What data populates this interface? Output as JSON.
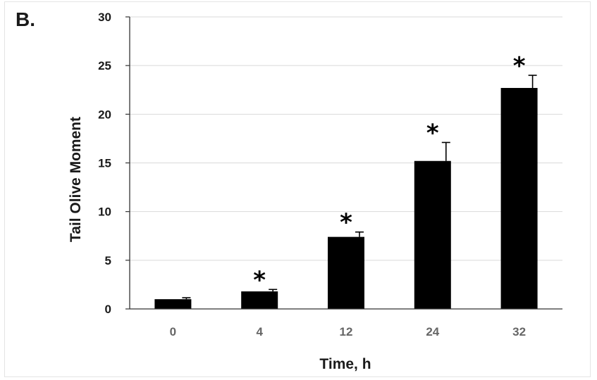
{
  "panel_label": "B.",
  "chart_data": {
    "type": "bar",
    "categories": [
      "0",
      "4",
      "12",
      "24",
      "32"
    ],
    "values": [
      1.0,
      1.8,
      7.4,
      15.2,
      22.7
    ],
    "error": [
      0.15,
      0.2,
      0.5,
      1.9,
      1.3
    ],
    "significance": [
      "",
      "*",
      "*",
      "*",
      "*"
    ],
    "xlabel": "Time, h",
    "ylabel": "Tail Olive Moment",
    "ylim": [
      0,
      30
    ],
    "yticks": [
      0,
      5,
      10,
      15,
      20,
      25,
      30
    ],
    "grid": "horizontal",
    "bar_color": "#000000",
    "grid_color": "#d9d9d9"
  }
}
